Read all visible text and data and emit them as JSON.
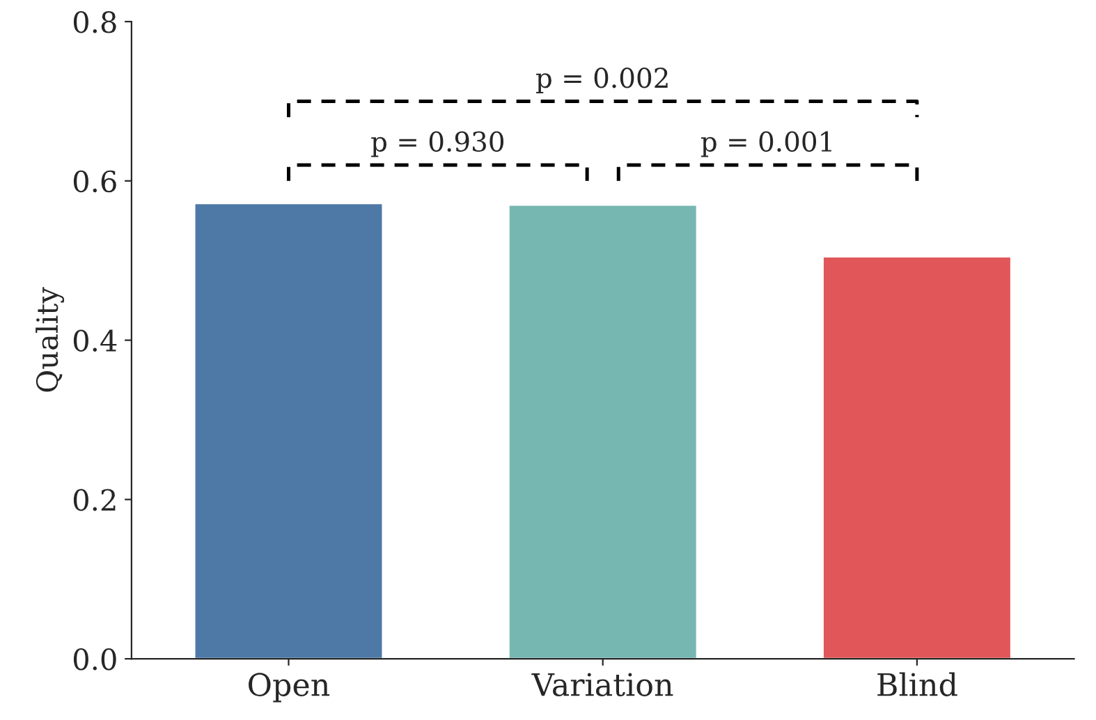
{
  "chart_data": {
    "type": "bar",
    "ylabel": "Quality",
    "categories": [
      "Open",
      "Variation",
      "Blind"
    ],
    "values": [
      0.572,
      0.57,
      0.505
    ],
    "colors": [
      "#4e79a7",
      "#76b7b2",
      "#e15759"
    ],
    "ylim": [
      0,
      0.8
    ],
    "yticks": [
      {
        "value": 0,
        "label": "0.0"
      },
      0.2,
      0.4,
      0.6,
      0.8
    ],
    "grid": false,
    "legend": false,
    "annotations": [
      "p = 0.930",
      "p = 0.001",
      "p = 0.002"
    ]
  }
}
